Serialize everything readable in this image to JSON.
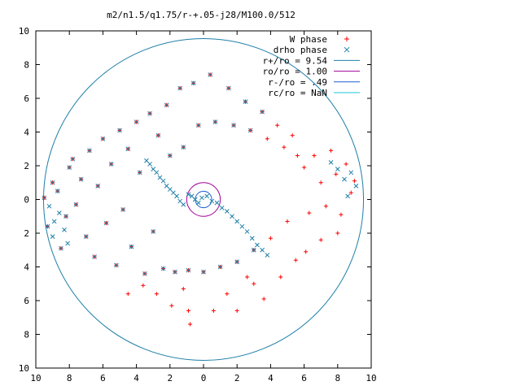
{
  "chart_data": {
    "type": "scatter",
    "title": "m2/n1.5/q1.75/r-+.05-j28/M100.0/512",
    "xlim": [
      -10,
      10
    ],
    "ylim": [
      -10,
      10
    ],
    "x_ticks": [
      -10,
      -8,
      -6,
      -4,
      -2,
      0,
      2,
      4,
      6,
      8,
      10
    ],
    "y_ticks": [
      10,
      8,
      6,
      4,
      2,
      0,
      -2,
      -4,
      -6,
      -8,
      -10
    ],
    "x_tick_labels": [
      "10",
      "8",
      "6",
      "4",
      "2",
      "0",
      "2",
      "4",
      "6",
      "8",
      "10"
    ],
    "y_tick_labels": [
      "10",
      "8",
      "6",
      "4",
      "2",
      "0",
      "2",
      "4",
      "6",
      "8",
      "10"
    ],
    "grid": false,
    "legend_position": "top-right",
    "series": [
      {
        "name": "W phase",
        "marker": "+",
        "color": "#ff0000",
        "points": [
          [
            -9.5,
            0.1
          ],
          [
            -9.3,
            -1.6
          ],
          [
            -9.0,
            1.0
          ],
          [
            -8.7,
            0.5
          ],
          [
            -8.5,
            -2.9
          ],
          [
            -8.2,
            -1.0
          ],
          [
            -8.0,
            1.9
          ],
          [
            -7.8,
            2.4
          ],
          [
            -7.6,
            -0.3
          ],
          [
            -7.3,
            1.2
          ],
          [
            -7.0,
            -2.2
          ],
          [
            -6.8,
            2.9
          ],
          [
            -6.5,
            -3.4
          ],
          [
            -6.3,
            0.8
          ],
          [
            -6.0,
            3.6
          ],
          [
            -5.8,
            -1.4
          ],
          [
            -5.5,
            2.1
          ],
          [
            -5.2,
            -3.9
          ],
          [
            -5.0,
            4.1
          ],
          [
            -4.8,
            -0.6
          ],
          [
            -4.5,
            3.0
          ],
          [
            -4.3,
            -2.8
          ],
          [
            -4.0,
            4.6
          ],
          [
            -3.8,
            1.6
          ],
          [
            -3.5,
            -4.4
          ],
          [
            -3.2,
            5.1
          ],
          [
            -3.0,
            -1.9
          ],
          [
            -2.7,
            3.8
          ],
          [
            -2.4,
            -4.1
          ],
          [
            -2.2,
            5.6
          ],
          [
            -2.0,
            2.6
          ],
          [
            -1.7,
            -4.3
          ],
          [
            -1.4,
            6.6
          ],
          [
            -1.2,
            3.1
          ],
          [
            -0.9,
            -4.2
          ],
          [
            -0.6,
            6.9
          ],
          [
            -0.3,
            4.4
          ],
          [
            0.0,
            -4.3
          ],
          [
            0.4,
            7.4
          ],
          [
            0.7,
            4.6
          ],
          [
            1.0,
            -4.0
          ],
          [
            1.5,
            6.6
          ],
          [
            1.8,
            4.4
          ],
          [
            2.0,
            -3.7
          ],
          [
            2.5,
            5.8
          ],
          [
            2.8,
            4.1
          ],
          [
            3.0,
            -3.0
          ],
          [
            3.5,
            5.2
          ],
          [
            3.8,
            3.6
          ],
          [
            4.0,
            -2.3
          ],
          [
            4.4,
            4.4
          ],
          [
            4.8,
            3.1
          ],
          [
            5.0,
            -1.3
          ],
          [
            5.3,
            3.8
          ],
          [
            5.6,
            2.6
          ],
          [
            6.0,
            1.9
          ],
          [
            6.3,
            -0.8
          ],
          [
            6.6,
            2.6
          ],
          [
            7.0,
            1.0
          ],
          [
            7.3,
            -0.4
          ],
          [
            7.6,
            2.9
          ],
          [
            7.9,
            1.5
          ],
          [
            8.2,
            -0.9
          ],
          [
            8.5,
            2.1
          ],
          [
            8.8,
            0.4
          ],
          [
            9.0,
            1.1
          ],
          [
            -3.6,
            -5.1
          ],
          [
            -2.8,
            -5.6
          ],
          [
            -1.9,
            -6.3
          ],
          [
            -0.9,
            -6.6
          ],
          [
            0.6,
            -6.6
          ],
          [
            2.0,
            -6.6
          ],
          [
            3.6,
            -5.9
          ],
          [
            4.6,
            -4.6
          ],
          [
            6.1,
            -3.1
          ],
          [
            7.0,
            -2.4
          ],
          [
            8.0,
            -2.0
          ],
          [
            -0.8,
            -7.4
          ],
          [
            -4.5,
            -5.6
          ],
          [
            3.0,
            -5.0
          ],
          [
            5.5,
            -3.6
          ],
          [
            -1.2,
            -5.3
          ],
          [
            1.4,
            -5.6
          ],
          [
            2.6,
            -4.6
          ]
        ]
      },
      {
        "name": "drho phase",
        "marker": "x",
        "color": "#1e7fa8",
        "points": [
          [
            -9.5,
            0.1
          ],
          [
            -9.3,
            -1.6
          ],
          [
            -9.0,
            1.0
          ],
          [
            -8.7,
            0.5
          ],
          [
            -8.5,
            -2.9
          ],
          [
            -8.2,
            -1.0
          ],
          [
            -8.0,
            1.9
          ],
          [
            -7.8,
            2.4
          ],
          [
            -7.6,
            -0.3
          ],
          [
            -7.3,
            1.2
          ],
          [
            -7.0,
            -2.2
          ],
          [
            -6.8,
            2.9
          ],
          [
            -6.5,
            -3.4
          ],
          [
            -6.3,
            0.8
          ],
          [
            -6.0,
            3.6
          ],
          [
            -5.8,
            -1.4
          ],
          [
            -5.5,
            2.1
          ],
          [
            -5.2,
            -3.9
          ],
          [
            -5.0,
            4.1
          ],
          [
            -4.8,
            -0.6
          ],
          [
            -4.5,
            3.0
          ],
          [
            -4.3,
            -2.8
          ],
          [
            -4.0,
            4.6
          ],
          [
            -3.8,
            1.6
          ],
          [
            -3.5,
            -4.4
          ],
          [
            -3.2,
            5.1
          ],
          [
            -3.0,
            -1.9
          ],
          [
            -2.7,
            3.8
          ],
          [
            -2.4,
            -4.1
          ],
          [
            -2.2,
            5.6
          ],
          [
            -2.0,
            2.6
          ],
          [
            -1.7,
            -4.3
          ],
          [
            -1.4,
            6.6
          ],
          [
            -1.2,
            3.1
          ],
          [
            -0.9,
            -4.2
          ],
          [
            -0.6,
            6.9
          ],
          [
            -0.3,
            4.4
          ],
          [
            0.0,
            -4.3
          ],
          [
            0.4,
            7.4
          ],
          [
            0.7,
            4.6
          ],
          [
            1.0,
            -4.0
          ],
          [
            1.5,
            6.6
          ],
          [
            1.8,
            4.4
          ],
          [
            2.0,
            -3.7
          ],
          [
            2.5,
            5.8
          ],
          [
            2.8,
            4.1
          ],
          [
            3.0,
            -3.0
          ],
          [
            3.5,
            5.2
          ],
          [
            -3.4,
            2.3
          ],
          [
            -3.2,
            2.1
          ],
          [
            -3.0,
            1.8
          ],
          [
            -2.8,
            1.6
          ],
          [
            -2.6,
            1.3
          ],
          [
            -2.4,
            1.1
          ],
          [
            -2.2,
            0.8
          ],
          [
            -2.0,
            0.6
          ],
          [
            -1.8,
            0.4
          ],
          [
            -1.6,
            0.2
          ],
          [
            -1.4,
            -0.1
          ],
          [
            -1.2,
            -0.3
          ],
          [
            -0.9,
            0.3
          ],
          [
            -0.7,
            0.2
          ],
          [
            -0.5,
            0.0
          ],
          [
            -0.3,
            -0.2
          ],
          [
            -0.1,
            0.1
          ],
          [
            0.2,
            0.2
          ],
          [
            0.5,
            -0.1
          ],
          [
            0.8,
            -0.2
          ],
          [
            1.1,
            -0.5
          ],
          [
            1.4,
            -0.7
          ],
          [
            1.7,
            -1.0
          ],
          [
            2.0,
            -1.3
          ],
          [
            2.3,
            -1.6
          ],
          [
            2.6,
            -1.9
          ],
          [
            2.9,
            -2.3
          ],
          [
            3.2,
            -2.7
          ],
          [
            3.5,
            -3.0
          ],
          [
            3.8,
            -3.3
          ],
          [
            -9.2,
            -0.4
          ],
          [
            -8.9,
            -1.3
          ],
          [
            -8.6,
            -0.8
          ],
          [
            -8.3,
            -1.8
          ],
          [
            -9.0,
            -2.2
          ],
          [
            -8.1,
            -2.6
          ],
          [
            8.0,
            1.8
          ],
          [
            8.4,
            1.2
          ],
          [
            8.8,
            1.6
          ],
          [
            7.6,
            2.2
          ],
          [
            9.1,
            0.8
          ],
          [
            8.6,
            0.2
          ]
        ]
      }
    ],
    "circles": [
      {
        "name": "r+/ro = 9.54",
        "radius": 9.54,
        "color": "#1e7fa8"
      },
      {
        "name": "ro/ro = 1.00",
        "radius": 1.0,
        "color": "#a0009a"
      },
      {
        "name": "r-/ro = .49",
        "radius": 0.49,
        "color": "#1e5fd0"
      },
      {
        "name": "rc/ro = NaN",
        "radius": null,
        "color": "#18c8d8"
      }
    ]
  }
}
